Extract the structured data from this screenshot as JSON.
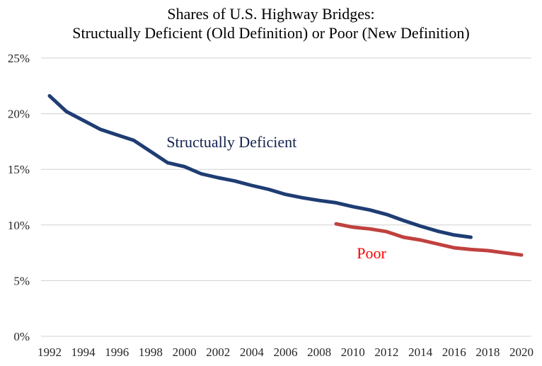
{
  "chart_data": {
    "type": "line",
    "title": "Shares of U.S. Highway Bridges:",
    "subtitle": "Structually Deficient (Old Definition) or Poor (New Definition)",
    "xlabel": "",
    "ylabel": "",
    "x_range": [
      1992,
      2020
    ],
    "x_ticks": [
      1992,
      1994,
      1996,
      1998,
      2000,
      2002,
      2004,
      2006,
      2008,
      2010,
      2012,
      2014,
      2016,
      2018,
      2020
    ],
    "x_tick_labels": [
      "1992",
      "1994",
      "1996",
      "1998",
      "2000",
      "2002",
      "2004",
      "2006",
      "2008",
      "2010",
      "2012",
      "2014",
      "2016",
      "2018",
      "2020"
    ],
    "ylim": [
      0,
      25
    ],
    "y_ticks": [
      0,
      5,
      10,
      15,
      20,
      25
    ],
    "y_tick_labels": [
      "0%",
      "5%",
      "10%",
      "15%",
      "20%",
      "25%"
    ],
    "grid": "horizontal",
    "legend": "none (inline labels)",
    "series": [
      {
        "name": "Structually Deficient",
        "color": "#1f3d73",
        "label_color": "#14224f",
        "x": [
          1992,
          1993,
          1994,
          1995,
          1996,
          1997,
          1998,
          1999,
          2000,
          2001,
          2002,
          2003,
          2004,
          2005,
          2006,
          2007,
          2008,
          2009,
          2010,
          2011,
          2012,
          2013,
          2014,
          2015,
          2016,
          2017
        ],
        "values": [
          21.6,
          20.2,
          19.4,
          18.6,
          18.1,
          17.6,
          16.6,
          15.6,
          15.25,
          14.6,
          14.25,
          13.95,
          13.55,
          13.2,
          12.75,
          12.45,
          12.2,
          12.0,
          11.65,
          11.35,
          10.95,
          10.4,
          9.9,
          9.45,
          9.1,
          8.9
        ]
      },
      {
        "name": "Poor",
        "color": "#c0413f",
        "label_color": "#ff0000",
        "x": [
          2009,
          2010,
          2011,
          2012,
          2013,
          2014,
          2015,
          2016,
          2017,
          2018,
          2019,
          2020
        ],
        "values": [
          10.1,
          9.8,
          9.65,
          9.4,
          8.9,
          8.65,
          8.3,
          7.95,
          7.8,
          7.7,
          7.5,
          7.3
        ]
      }
    ],
    "annotations": [
      {
        "text": "Structually Deficient",
        "x": 2002.8,
        "y": 17.0,
        "series": 0
      },
      {
        "text": "Poor",
        "x": 2011.1,
        "y": 7.0,
        "series": 1
      }
    ]
  }
}
